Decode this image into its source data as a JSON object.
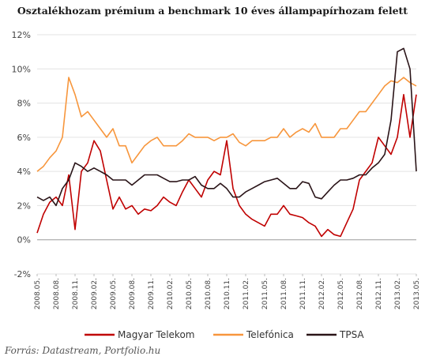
{
  "chart_data": {
    "type": "line",
    "title": "Osztalékhozam prémium a benchmark 10 éves állampapírhozam felett",
    "source": "Forrás: Datastream, Portfolio.hu",
    "y_unit": "%",
    "ylim": [
      -2,
      12
    ],
    "yticks": [
      "-2%",
      "0%",
      "2%",
      "4%",
      "6%",
      "8%",
      "10%",
      "12%"
    ],
    "ytick_values": [
      -2,
      0,
      2,
      4,
      6,
      8,
      10,
      12
    ],
    "xlim": [
      "2008.05",
      "2013.05"
    ],
    "xticks": [
      "2008.05.",
      "2008.08.",
      "2008.11.",
      "2009.02.",
      "2009.05.",
      "2009.08.",
      "2009.11.",
      "2010.02.",
      "2010.05.",
      "2010.08.",
      "2010.11.",
      "2011.02.",
      "2011.05.",
      "2011.08.",
      "2011.11.",
      "2012.02.",
      "2012.05.",
      "2012.08.",
      "2012.11.",
      "2013.02.",
      "2013.05."
    ],
    "grid": "horizontal",
    "legend_position": "bottom",
    "series": [
      {
        "name": "Magyar Telekom",
        "color": "#c00000",
        "x": [
          "2008.05",
          "2008.06",
          "2008.07",
          "2008.08",
          "2008.09",
          "2008.10",
          "2008.11",
          "2008.12",
          "2009.01",
          "2009.02",
          "2009.03",
          "2009.04",
          "2009.05",
          "2009.06",
          "2009.07",
          "2009.08",
          "2009.09",
          "2009.10",
          "2009.11",
          "2009.12",
          "2010.01",
          "2010.02",
          "2010.03",
          "2010.04",
          "2010.05",
          "2010.06",
          "2010.07",
          "2010.08",
          "2010.09",
          "2010.10",
          "2010.11",
          "2010.12",
          "2011.01",
          "2011.02",
          "2011.03",
          "2011.04",
          "2011.05",
          "2011.06",
          "2011.07",
          "2011.08",
          "2011.09",
          "2011.10",
          "2011.11",
          "2011.12",
          "2012.01",
          "2012.02",
          "2012.03",
          "2012.04",
          "2012.05",
          "2012.06",
          "2012.07",
          "2012.08",
          "2012.09",
          "2012.10",
          "2012.11",
          "2012.12",
          "2013.01",
          "2013.02",
          "2013.03",
          "2013.04",
          "2013.05"
        ],
        "values": [
          0.4,
          1.5,
          2.2,
          2.5,
          2.0,
          3.8,
          0.6,
          4.0,
          4.5,
          5.8,
          5.2,
          3.5,
          1.8,
          2.5,
          1.8,
          2.0,
          1.5,
          1.8,
          1.7,
          2.0,
          2.5,
          2.2,
          2.0,
          2.8,
          3.5,
          3.0,
          2.5,
          3.5,
          4.0,
          3.8,
          5.8,
          3.0,
          2.0,
          1.5,
          1.2,
          1.0,
          0.8,
          1.5,
          1.5,
          2.0,
          1.5,
          1.4,
          1.3,
          1.0,
          0.8,
          0.2,
          0.6,
          0.3,
          0.2,
          1.0,
          1.8,
          3.5,
          4.0,
          4.5,
          6.0,
          5.5,
          5.0,
          6.0,
          8.5,
          6.0,
          8.5
        ]
      },
      {
        "name": "Telefónica",
        "color": "#f7963c",
        "x": [
          "2008.05",
          "2008.06",
          "2008.07",
          "2008.08",
          "2008.09",
          "2008.10",
          "2008.11",
          "2008.12",
          "2009.01",
          "2009.02",
          "2009.03",
          "2009.04",
          "2009.05",
          "2009.06",
          "2009.07",
          "2009.08",
          "2009.09",
          "2009.10",
          "2009.11",
          "2009.12",
          "2010.01",
          "2010.02",
          "2010.03",
          "2010.04",
          "2010.05",
          "2010.06",
          "2010.07",
          "2010.08",
          "2010.09",
          "2010.10",
          "2010.11",
          "2010.12",
          "2011.01",
          "2011.02",
          "2011.03",
          "2011.04",
          "2011.05",
          "2011.06",
          "2011.07",
          "2011.08",
          "2011.09",
          "2011.10",
          "2011.11",
          "2011.12",
          "2012.01",
          "2012.02",
          "2012.03",
          "2012.04",
          "2012.05",
          "2012.06",
          "2012.07",
          "2012.08",
          "2012.09",
          "2012.10",
          "2012.11",
          "2012.12",
          "2013.01",
          "2013.02",
          "2013.03",
          "2013.04",
          "2013.05"
        ],
        "values": [
          4.0,
          4.3,
          4.8,
          5.2,
          6.0,
          9.5,
          8.5,
          7.2,
          7.5,
          7.0,
          6.5,
          6.0,
          6.5,
          5.5,
          5.5,
          4.5,
          5.0,
          5.5,
          5.8,
          6.0,
          5.5,
          5.5,
          5.5,
          5.8,
          6.2,
          6.0,
          6.0,
          6.0,
          5.8,
          6.0,
          6.0,
          6.2,
          5.7,
          5.5,
          5.8,
          5.8,
          5.8,
          6.0,
          6.0,
          6.5,
          6.0,
          6.3,
          6.5,
          6.3,
          6.8,
          6.0,
          6.0,
          6.0,
          6.5,
          6.5,
          7.0,
          7.5,
          7.5,
          8.0,
          8.5,
          9.0,
          9.3,
          9.2,
          9.5,
          9.2,
          9.0
        ]
      },
      {
        "name": "TPSA",
        "color": "#2a1418",
        "x": [
          "2008.05",
          "2008.06",
          "2008.07",
          "2008.08",
          "2008.09",
          "2008.10",
          "2008.11",
          "2008.12",
          "2009.01",
          "2009.02",
          "2009.03",
          "2009.04",
          "2009.05",
          "2009.06",
          "2009.07",
          "2009.08",
          "2009.09",
          "2009.10",
          "2009.11",
          "2009.12",
          "2010.01",
          "2010.02",
          "2010.03",
          "2010.04",
          "2010.05",
          "2010.06",
          "2010.07",
          "2010.08",
          "2010.09",
          "2010.10",
          "2010.11",
          "2010.12",
          "2011.01",
          "2011.02",
          "2011.03",
          "2011.04",
          "2011.05",
          "2011.06",
          "2011.07",
          "2011.08",
          "2011.09",
          "2011.10",
          "2011.11",
          "2011.12",
          "2012.01",
          "2012.02",
          "2012.03",
          "2012.04",
          "2012.05",
          "2012.06",
          "2012.07",
          "2012.08",
          "2012.09",
          "2012.10",
          "2012.11",
          "2012.12",
          "2013.01",
          "2013.02",
          "2013.03",
          "2013.04",
          "2013.05"
        ],
        "values": [
          2.5,
          2.3,
          2.5,
          2.0,
          3.0,
          3.5,
          4.5,
          4.3,
          4.0,
          4.2,
          4.0,
          3.8,
          3.5,
          3.5,
          3.5,
          3.2,
          3.5,
          3.8,
          3.8,
          3.8,
          3.6,
          3.4,
          3.4,
          3.5,
          3.5,
          3.7,
          3.2,
          3.0,
          3.0,
          3.3,
          3.0,
          2.5,
          2.5,
          2.8,
          3.0,
          3.2,
          3.4,
          3.5,
          3.6,
          3.3,
          3.0,
          3.0,
          3.4,
          3.3,
          2.5,
          2.4,
          2.8,
          3.2,
          3.5,
          3.5,
          3.6,
          3.8,
          3.8,
          4.2,
          4.5,
          5.0,
          7.0,
          11.0,
          11.2,
          10.0,
          4.0
        ]
      }
    ]
  }
}
